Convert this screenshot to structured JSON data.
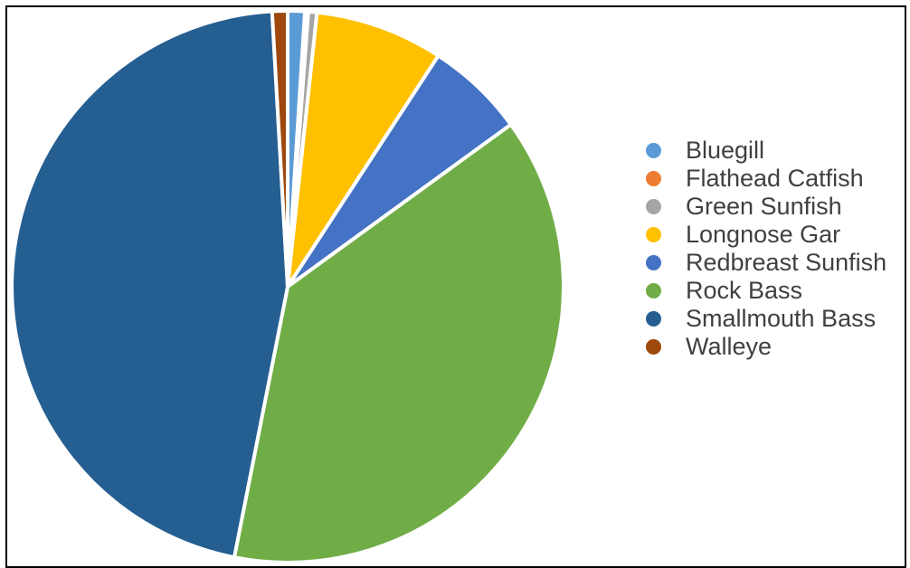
{
  "chart_data": {
    "type": "pie",
    "title": "",
    "legend_position": "right",
    "categories": [
      "Bluegill",
      "Flathead Catfish",
      "Green Sunfish",
      "Longnose Gar",
      "Redbreast Sunfish",
      "Rock Bass",
      "Smallmouth Bass",
      "Walleye"
    ],
    "values": [
      1.0,
      0.2,
      0.5,
      7.5,
      5.8,
      38.1,
      46.0,
      0.9
    ],
    "colors": [
      "#5B9BD5",
      "#ED7D31",
      "#A5A5A5",
      "#FFC000",
      "#4472C4",
      "#70AD47",
      "#255E91",
      "#9E480E"
    ]
  }
}
